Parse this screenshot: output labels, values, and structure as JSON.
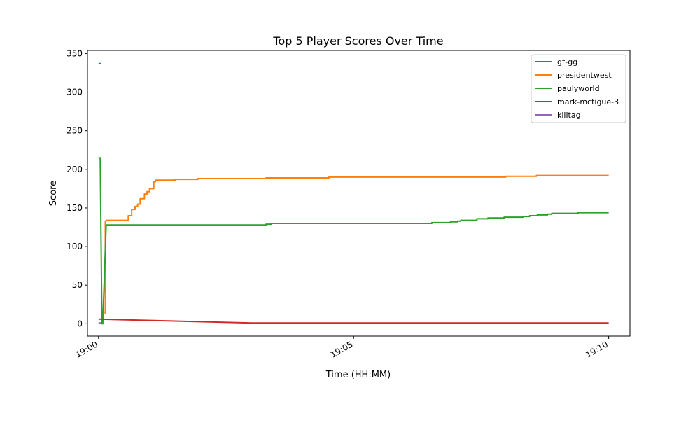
{
  "chart_data": {
    "type": "line",
    "title": "Top 5 Player Scores Over Time",
    "xlabel": "Time (HH:MM)",
    "ylabel": "Score",
    "xlim": [
      "18:59:47",
      "19:10:25"
    ],
    "ylim": [
      -16,
      354
    ],
    "xticks": [
      "19:00",
      "19:05",
      "19:10"
    ],
    "yticks": [
      0,
      50,
      100,
      150,
      200,
      250,
      300,
      350
    ],
    "grid": false,
    "legend_position": "top-right",
    "series": [
      {
        "name": "gt-gg",
        "color": "#1f77b4",
        "drawstyle": "steps-post",
        "points": [
          [
            "19:00:00",
            337
          ],
          [
            "19:00:03",
            337
          ]
        ]
      },
      {
        "name": "presidentwest",
        "color": "#ff7f0e",
        "drawstyle": "steps-post",
        "points": [
          [
            "19:00:07",
            14
          ],
          [
            "19:00:08",
            133
          ],
          [
            "19:00:09",
            134
          ],
          [
            "19:00:31",
            134
          ],
          [
            "19:00:35",
            140
          ],
          [
            "19:00:39",
            148
          ],
          [
            "19:00:43",
            152
          ],
          [
            "19:00:46",
            155
          ],
          [
            "19:00:49",
            162
          ],
          [
            "19:00:54",
            168
          ],
          [
            "19:00:57",
            171
          ],
          [
            "19:01:00",
            175
          ],
          [
            "19:01:05",
            184
          ],
          [
            "19:01:07",
            186
          ],
          [
            "19:01:30",
            187
          ],
          [
            "19:01:57",
            188
          ],
          [
            "19:03:17",
            189
          ],
          [
            "19:04:31",
            190
          ],
          [
            "19:07:59",
            191
          ],
          [
            "19:08:35",
            192
          ],
          [
            "19:10:00",
            192
          ]
        ]
      },
      {
        "name": "paulyworld",
        "color": "#2ca02c",
        "drawstyle": "linear",
        "points": [
          [
            "19:00:00",
            215
          ],
          [
            "19:00:02",
            215
          ],
          [
            "19:00:04",
            0
          ],
          [
            "19:00:05",
            0
          ],
          [
            "19:00:09",
            128
          ],
          [
            "19:03:17",
            128
          ],
          [
            "19:03:17",
            129
          ],
          [
            "19:03:23",
            129
          ],
          [
            "19:03:23",
            130
          ],
          [
            "19:06:32",
            130
          ],
          [
            "19:06:32",
            131
          ],
          [
            "19:06:54",
            131
          ],
          [
            "19:06:54",
            132
          ],
          [
            "19:07:02",
            132
          ],
          [
            "19:07:02",
            133
          ],
          [
            "19:07:06",
            133
          ],
          [
            "19:07:06",
            134
          ],
          [
            "19:07:25",
            134
          ],
          [
            "19:07:25",
            136
          ],
          [
            "19:07:38",
            136
          ],
          [
            "19:07:38",
            137
          ],
          [
            "19:07:57",
            137
          ],
          [
            "19:07:57",
            138
          ],
          [
            "19:08:19",
            138
          ],
          [
            "19:08:19",
            139
          ],
          [
            "19:08:27",
            139
          ],
          [
            "19:08:27",
            140
          ],
          [
            "19:08:36",
            140
          ],
          [
            "19:08:36",
            141
          ],
          [
            "19:08:48",
            141
          ],
          [
            "19:08:48",
            142
          ],
          [
            "19:08:53",
            142
          ],
          [
            "19:08:53",
            143
          ],
          [
            "19:09:24",
            143
          ],
          [
            "19:09:24",
            144
          ],
          [
            "19:10:00",
            144
          ]
        ]
      },
      {
        "name": "mark-mctigue-3",
        "color": "#d62728",
        "drawstyle": "linear",
        "points": [
          [
            "19:00:00",
            6
          ],
          [
            "19:03:00",
            1
          ],
          [
            "19:10:00",
            1
          ]
        ]
      },
      {
        "name": "killtag",
        "color": "#9467bd",
        "drawstyle": "linear",
        "points": [
          [
            "19:00:00",
            1
          ],
          [
            "19:00:03",
            1
          ]
        ]
      }
    ]
  }
}
